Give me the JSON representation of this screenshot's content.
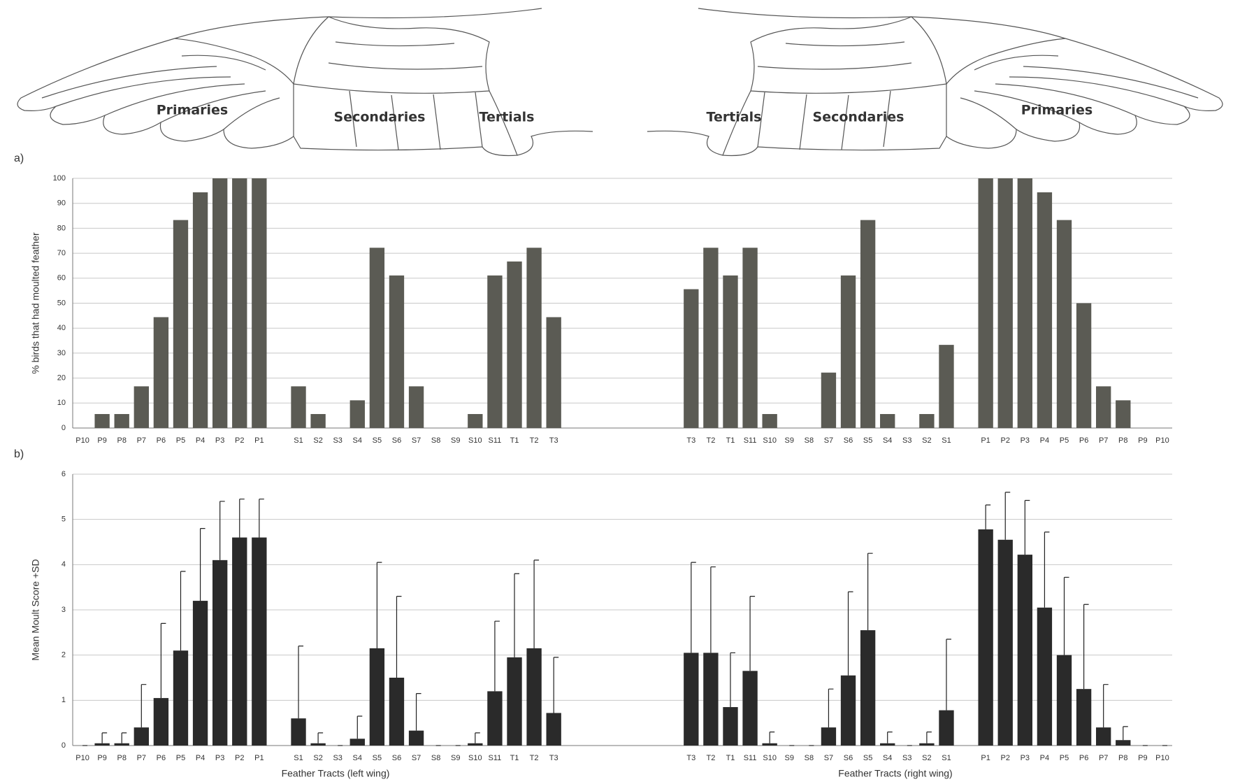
{
  "wing_labels": {
    "left": [
      "Primaries",
      "Secondaries",
      "Tertials"
    ],
    "right": [
      "Tertials",
      "Secondaries",
      "Primaries"
    ]
  },
  "chart_data": [
    {
      "type": "bar",
      "label": "a)",
      "ylabel": "% birds that had moulted feather",
      "color": "#5b5b54",
      "grid": true,
      "ylim": [
        0,
        100
      ],
      "yticks": [
        0,
        10,
        20,
        30,
        40,
        50,
        60,
        70,
        80,
        90,
        100
      ],
      "categories": [
        "P10",
        "P9",
        "P8",
        "P7",
        "P6",
        "P5",
        "P4",
        "P3",
        "P2",
        "P1",
        null,
        "S1",
        "S2",
        "S3",
        "S4",
        "S5",
        "S6",
        "S7",
        "S8",
        "S9",
        "S10",
        "S11",
        "T1",
        "T2",
        "T3",
        null,
        null,
        null,
        null,
        null,
        null,
        "T3",
        "T2",
        "T1",
        "S11",
        "S10",
        "S9",
        "S8",
        "S7",
        "S6",
        "S5",
        "S4",
        "S3",
        "S2",
        "S1",
        null,
        "P1",
        "P2",
        "P3",
        "P4",
        "P5",
        "P6",
        "P7",
        "P8",
        "P9",
        "P10"
      ],
      "values": [
        0,
        5.6,
        5.6,
        16.7,
        44.4,
        83.3,
        94.4,
        100,
        100,
        100,
        null,
        16.7,
        5.6,
        0,
        11.1,
        72.2,
        61.1,
        16.7,
        0,
        0,
        5.6,
        61.1,
        66.7,
        72.2,
        44.4,
        null,
        null,
        null,
        null,
        null,
        null,
        55.6,
        72.2,
        61.1,
        72.2,
        5.6,
        0,
        0,
        22.2,
        61.1,
        83.3,
        5.6,
        0,
        5.6,
        33.3,
        null,
        100,
        100,
        100,
        94.4,
        83.3,
        50,
        16.7,
        11.1,
        0,
        0
      ]
    },
    {
      "type": "bar_error",
      "label": "b)",
      "ylabel": "Mean Moult Score +SD",
      "color": "#2a2a2a",
      "grid": true,
      "x_labels": [
        "Feather Tracts (left wing)",
        "Feather Tracts (right wing)"
      ],
      "ylim": [
        0,
        6
      ],
      "yticks": [
        0,
        1,
        2,
        3,
        4,
        5,
        6
      ],
      "categories": [
        "P10",
        "P9",
        "P8",
        "P7",
        "P6",
        "P5",
        "P4",
        "P3",
        "P2",
        "P1",
        null,
        "S1",
        "S2",
        "S3",
        "S4",
        "S5",
        "S6",
        "S7",
        "S8",
        "S9",
        "S10",
        "S11",
        "T1",
        "T2",
        "T3",
        null,
        null,
        null,
        null,
        null,
        null,
        "T3",
        "T2",
        "T1",
        "S11",
        "S10",
        "S9",
        "S8",
        "S7",
        "S6",
        "S5",
        "S4",
        "S3",
        "S2",
        "S1",
        null,
        "P1",
        "P2",
        "P3",
        "P4",
        "P5",
        "P6",
        "P7",
        "P8",
        "P9",
        "P10"
      ],
      "values": [
        0,
        0.05,
        0.05,
        0.4,
        1.05,
        2.1,
        3.2,
        4.1,
        4.6,
        4.6,
        null,
        0.6,
        0.05,
        0,
        0.15,
        2.15,
        1.5,
        0.33,
        0,
        0,
        0.05,
        1.2,
        1.95,
        2.15,
        0.72,
        null,
        null,
        null,
        null,
        null,
        null,
        2.05,
        2.05,
        0.85,
        1.65,
        0.05,
        0,
        0,
        0.4,
        1.55,
        2.55,
        0.05,
        0,
        0.05,
        0.78,
        null,
        4.78,
        4.55,
        4.22,
        3.05,
        2.0,
        1.25,
        0.4,
        0.12,
        0,
        0
      ],
      "errors": [
        0,
        0.23,
        0.23,
        0.95,
        1.65,
        1.75,
        1.6,
        1.3,
        0.85,
        0.85,
        null,
        1.6,
        0.23,
        0,
        0.5,
        1.9,
        1.8,
        0.82,
        0,
        0,
        0.23,
        1.55,
        1.85,
        1.95,
        1.23,
        null,
        null,
        null,
        null,
        null,
        null,
        2.0,
        1.9,
        1.2,
        1.65,
        0.25,
        0,
        0,
        0.85,
        1.85,
        1.7,
        0.25,
        0,
        0.25,
        1.57,
        null,
        0.54,
        1.05,
        1.2,
        1.67,
        1.72,
        1.87,
        0.95,
        0.3,
        0,
        0
      ]
    }
  ]
}
